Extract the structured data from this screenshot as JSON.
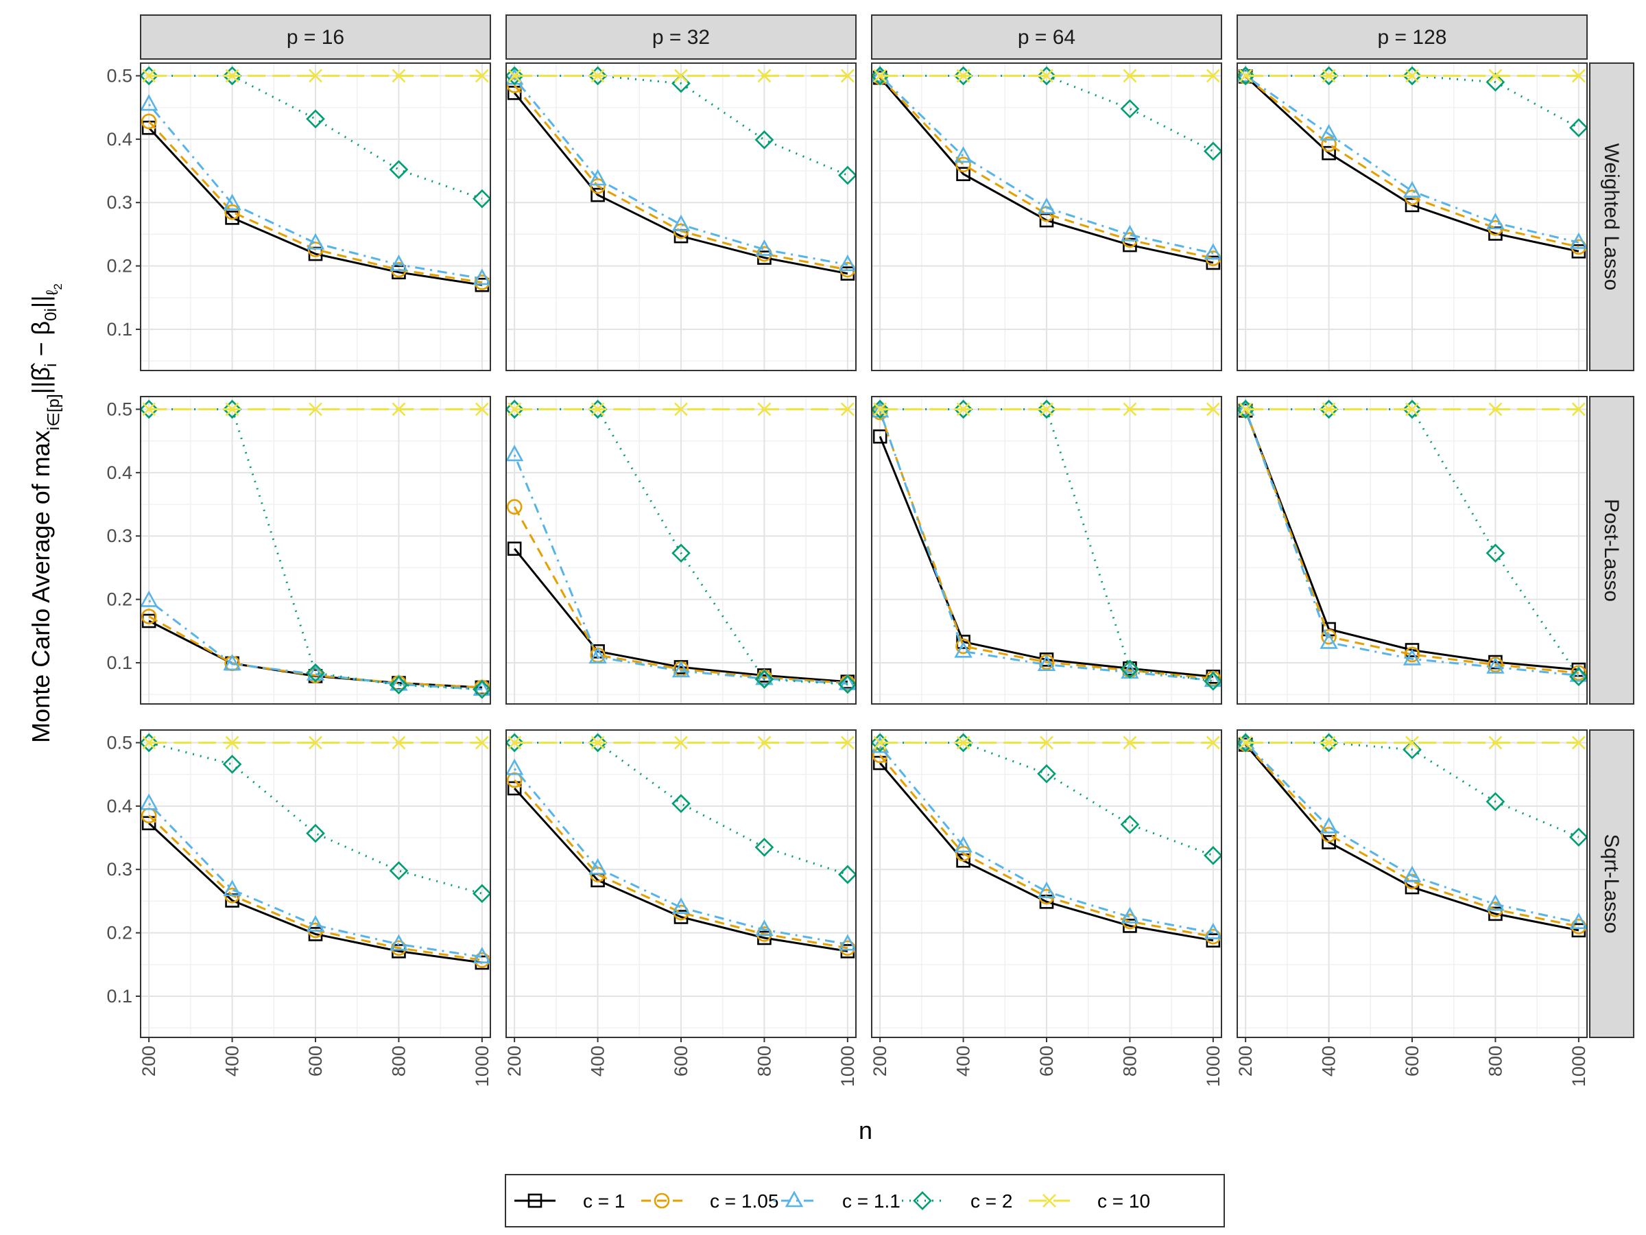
{
  "chart_data": {
    "type": "line",
    "facet_cols": [
      "p = 16",
      "p = 32",
      "p = 64",
      "p = 128"
    ],
    "facet_rows": [
      "Weighted Lasso",
      "Post-Lasso",
      "Sqrt-Lasso"
    ],
    "xlabel": "n",
    "ylabel_prefix": "Monte Carlo Average of ",
    "ylabel_max": "max",
    "ylabel_sub": "i∈[p]",
    "ylabel_norm": "||β̂",
    "ylabel_i": "i",
    "ylabel_minus": " − β",
    "ylabel_0i": "0i",
    "ylabel_close": "||",
    "ylabel_l": "ℓ",
    "ylabel_2": "2",
    "x": [
      200,
      400,
      600,
      800,
      1000
    ],
    "x_ticks": [
      "200",
      "400",
      "600",
      "800",
      "1000"
    ],
    "xlim": [
      180,
      1020
    ],
    "ylim": [
      0.035,
      0.52
    ],
    "y_ticks": [
      "0.1",
      "0.2",
      "0.3",
      "0.4",
      "0.5"
    ],
    "grid": true,
    "legend_position": "bottom",
    "series_meta": [
      {
        "name": "c = 1",
        "color": "#000000",
        "marker": "square",
        "dash": "solid"
      },
      {
        "name": "c = 1.05",
        "color": "#E69F00",
        "marker": "circle",
        "dash": "dashed"
      },
      {
        "name": "c = 1.1",
        "color": "#56B4E9",
        "marker": "triangle",
        "dash": "dotdash"
      },
      {
        "name": "c = 2",
        "color": "#009E73",
        "marker": "diamond",
        "dash": "dotted"
      },
      {
        "name": "c = 10",
        "color": "#F0E442",
        "marker": "x",
        "dash": "longdash"
      }
    ],
    "panels": [
      {
        "row": "Weighted Lasso",
        "col": "p = 16",
        "series": [
          {
            "name": "c = 1",
            "values": [
              0.418,
              0.276,
              0.219,
              0.19,
              0.17
            ]
          },
          {
            "name": "c = 1.05",
            "values": [
              0.428,
              0.285,
              0.226,
              0.194,
              0.174
            ]
          },
          {
            "name": "c = 1.1",
            "values": [
              0.455,
              0.298,
              0.236,
              0.202,
              0.18
            ]
          },
          {
            "name": "c = 2",
            "values": [
              0.5,
              0.5,
              0.432,
              0.352,
              0.306
            ]
          },
          {
            "name": "c = 10",
            "values": [
              0.5,
              0.5,
              0.5,
              0.5,
              0.5
            ]
          }
        ]
      },
      {
        "row": "Weighted Lasso",
        "col": "p = 32",
        "series": [
          {
            "name": "c = 1",
            "values": [
              0.473,
              0.312,
              0.247,
              0.213,
              0.188
            ]
          },
          {
            "name": "c = 1.05",
            "values": [
              0.485,
              0.326,
              0.255,
              0.219,
              0.194
            ]
          },
          {
            "name": "c = 1.1",
            "values": [
              0.496,
              0.337,
              0.265,
              0.226,
              0.202
            ]
          },
          {
            "name": "c = 2",
            "values": [
              0.5,
              0.5,
              0.488,
              0.399,
              0.343
            ]
          },
          {
            "name": "c = 10",
            "values": [
              0.5,
              0.5,
              0.5,
              0.5,
              0.5
            ]
          }
        ]
      },
      {
        "row": "Weighted Lasso",
        "col": "p = 64",
        "series": [
          {
            "name": "c = 1",
            "values": [
              0.497,
              0.345,
              0.272,
              0.233,
              0.205
            ]
          },
          {
            "name": "c = 1.05",
            "values": [
              0.498,
              0.36,
              0.282,
              0.241,
              0.212
            ]
          },
          {
            "name": "c = 1.1",
            "values": [
              0.5,
              0.373,
              0.292,
              0.249,
              0.22
            ]
          },
          {
            "name": "c = 2",
            "values": [
              0.5,
              0.5,
              0.5,
              0.448,
              0.381
            ]
          },
          {
            "name": "c = 10",
            "values": [
              0.5,
              0.5,
              0.5,
              0.5,
              0.5
            ]
          }
        ]
      },
      {
        "row": "Weighted Lasso",
        "col": "p = 128",
        "series": [
          {
            "name": "c = 1",
            "values": [
              0.499,
              0.378,
              0.296,
              0.251,
              0.223
            ]
          },
          {
            "name": "c = 1.05",
            "values": [
              0.499,
              0.392,
              0.308,
              0.26,
              0.23
            ]
          },
          {
            "name": "c = 1.1",
            "values": [
              0.5,
              0.408,
              0.318,
              0.268,
              0.237
            ]
          },
          {
            "name": "c = 2",
            "values": [
              0.5,
              0.5,
              0.5,
              0.49,
              0.418
            ]
          },
          {
            "name": "c = 10",
            "values": [
              0.5,
              0.5,
              0.5,
              0.5,
              0.5
            ]
          }
        ]
      },
      {
        "row": "Post-Lasso",
        "col": "p = 16",
        "series": [
          {
            "name": "c = 1",
            "values": [
              0.166,
              0.099,
              0.079,
              0.068,
              0.061
            ]
          },
          {
            "name": "c = 1.05",
            "values": [
              0.173,
              0.099,
              0.08,
              0.068,
              0.061
            ]
          },
          {
            "name": "c = 1.1",
            "values": [
              0.198,
              0.098,
              0.082,
              0.066,
              0.058
            ]
          },
          {
            "name": "c = 2",
            "values": [
              0.5,
              0.5,
              0.084,
              0.065,
              0.058
            ]
          },
          {
            "name": "c = 10",
            "values": [
              0.5,
              0.5,
              0.5,
              0.5,
              0.5
            ]
          }
        ]
      },
      {
        "row": "Post-Lasso",
        "col": "p = 32",
        "series": [
          {
            "name": "c = 1",
            "values": [
              0.28,
              0.118,
              0.093,
              0.08,
              0.07
            ]
          },
          {
            "name": "c = 1.05",
            "values": [
              0.346,
              0.112,
              0.09,
              0.077,
              0.068
            ]
          },
          {
            "name": "c = 1.1",
            "values": [
              0.428,
              0.109,
              0.087,
              0.075,
              0.067
            ]
          },
          {
            "name": "c = 2",
            "values": [
              0.5,
              0.5,
              0.273,
              0.074,
              0.066
            ]
          },
          {
            "name": "c = 10",
            "values": [
              0.5,
              0.5,
              0.5,
              0.5,
              0.5
            ]
          }
        ]
      },
      {
        "row": "Post-Lasso",
        "col": "p = 64",
        "series": [
          {
            "name": "c = 1",
            "values": [
              0.457,
              0.133,
              0.105,
              0.091,
              0.078
            ]
          },
          {
            "name": "c = 1.05",
            "values": [
              0.495,
              0.126,
              0.101,
              0.088,
              0.075
            ]
          },
          {
            "name": "c = 1.1",
            "values": [
              0.497,
              0.118,
              0.097,
              0.085,
              0.072
            ]
          },
          {
            "name": "c = 2",
            "values": [
              0.5,
              0.5,
              0.5,
              0.09,
              0.071
            ]
          },
          {
            "name": "c = 10",
            "values": [
              0.5,
              0.5,
              0.5,
              0.5,
              0.5
            ]
          }
        ]
      },
      {
        "row": "Post-Lasso",
        "col": "p = 128",
        "series": [
          {
            "name": "c = 1",
            "values": [
              0.498,
              0.153,
              0.12,
              0.101,
              0.089
            ]
          },
          {
            "name": "c = 1.05",
            "values": [
              0.499,
              0.141,
              0.113,
              0.097,
              0.084
            ]
          },
          {
            "name": "c = 1.1",
            "values": [
              0.5,
              0.132,
              0.106,
              0.093,
              0.08
            ]
          },
          {
            "name": "c = 2",
            "values": [
              0.5,
              0.5,
              0.5,
              0.273,
              0.078
            ]
          },
          {
            "name": "c = 10",
            "values": [
              0.5,
              0.5,
              0.5,
              0.5,
              0.5
            ]
          }
        ]
      },
      {
        "row": "Sqrt-Lasso",
        "col": "p = 16",
        "series": [
          {
            "name": "c = 1",
            "values": [
              0.373,
              0.251,
              0.198,
              0.171,
              0.153
            ]
          },
          {
            "name": "c = 1.05",
            "values": [
              0.385,
              0.259,
              0.204,
              0.176,
              0.157
            ]
          },
          {
            "name": "c = 1.1",
            "values": [
              0.404,
              0.268,
              0.212,
              0.182,
              0.162
            ]
          },
          {
            "name": "c = 2",
            "values": [
              0.5,
              0.466,
              0.357,
              0.298,
              0.262
            ]
          },
          {
            "name": "c = 10",
            "values": [
              0.5,
              0.5,
              0.5,
              0.5,
              0.5
            ]
          }
        ]
      },
      {
        "row": "Sqrt-Lasso",
        "col": "p = 32",
        "series": [
          {
            "name": "c = 1",
            "values": [
              0.428,
              0.283,
              0.225,
              0.192,
              0.171
            ]
          },
          {
            "name": "c = 1.05",
            "values": [
              0.441,
              0.292,
              0.232,
              0.198,
              0.176
            ]
          },
          {
            "name": "c = 1.1",
            "values": [
              0.459,
              0.302,
              0.24,
              0.205,
              0.182
            ]
          },
          {
            "name": "c = 2",
            "values": [
              0.5,
              0.5,
              0.404,
              0.335,
              0.292
            ]
          },
          {
            "name": "c = 10",
            "values": [
              0.5,
              0.5,
              0.5,
              0.5,
              0.5
            ]
          }
        ]
      },
      {
        "row": "Sqrt-Lasso",
        "col": "p = 64",
        "series": [
          {
            "name": "c = 1",
            "values": [
              0.468,
              0.314,
              0.249,
              0.211,
              0.188
            ]
          },
          {
            "name": "c = 1.05",
            "values": [
              0.48,
              0.325,
              0.257,
              0.218,
              0.194
            ]
          },
          {
            "name": "c = 1.1",
            "values": [
              0.494,
              0.337,
              0.265,
              0.225,
              0.2
            ]
          },
          {
            "name": "c = 2",
            "values": [
              0.5,
              0.5,
              0.451,
              0.371,
              0.322
            ]
          },
          {
            "name": "c = 10",
            "values": [
              0.5,
              0.5,
              0.5,
              0.5,
              0.5
            ]
          }
        ]
      },
      {
        "row": "Sqrt-Lasso",
        "col": "p = 128",
        "series": [
          {
            "name": "c = 1",
            "values": [
              0.497,
              0.343,
              0.272,
              0.23,
              0.204
            ]
          },
          {
            "name": "c = 1.05",
            "values": [
              0.498,
              0.355,
              0.281,
              0.237,
              0.21
            ]
          },
          {
            "name": "c = 1.1",
            "values": [
              0.5,
              0.367,
              0.29,
              0.245,
              0.216
            ]
          },
          {
            "name": "c = 2",
            "values": [
              0.5,
              0.5,
              0.489,
              0.407,
              0.351
            ]
          },
          {
            "name": "c = 10",
            "values": [
              0.5,
              0.5,
              0.5,
              0.5,
              0.5
            ]
          }
        ]
      }
    ]
  }
}
